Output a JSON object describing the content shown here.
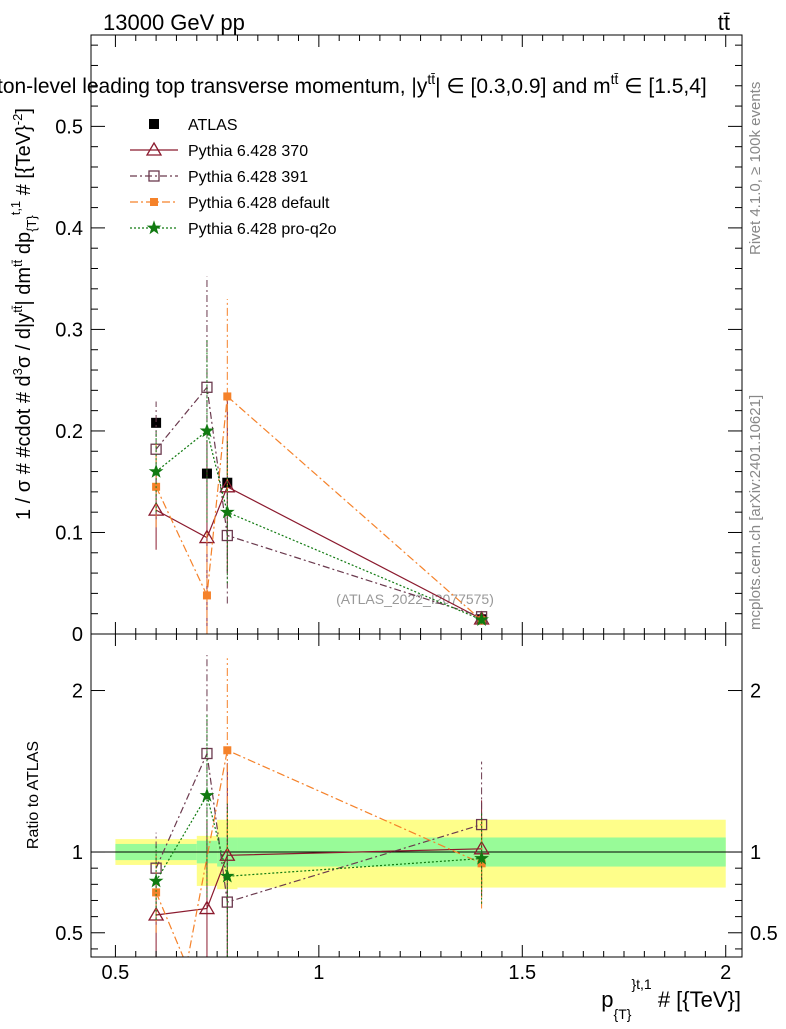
{
  "header": {
    "left": "13000 GeV pp",
    "right": "tt̄",
    "title_clipped": "rton-level leading top transverse momentum, |y",
    "title_clipped_sup": "tt̄",
    "title_end": "| ∈ [0.3,0.9] and m",
    "title_end_sup": "tt̄",
    "title_end2": " ∈ [1.5,4]"
  },
  "side_labels": {
    "rivet": "Rivet 4.1.0, ≥ 100k events",
    "mcplots": "mcplots.cern.ch [arXiv:2401.10621]"
  },
  "watermark": "(ATLAS_2022_I2077575)",
  "chart_data": [
    {
      "type": "scatter",
      "panel": "main",
      "ylabel": "1 / σ # #cdot # d³σ / d|y^{tt̄}| dm^{tt̄} dp_{T}^{t,1} # [{TeV}^{-2}]",
      "ylabel_parts": {
        "a": "1 / σ # #cdot # d",
        "a_sup": "3",
        "b": "σ / d|y",
        "b_sup": "tt̄",
        "c": "| dm",
        "c_sup": "tt̄",
        "d": " dp",
        "d_sub": "{T}",
        "d_sup": "t,1",
        "e": " # [{TeV}",
        "e_sup": "-2",
        "f": "]"
      },
      "xlim": [
        0.44,
        2.04
      ],
      "ylim": [
        0,
        0.59
      ],
      "yticks": [
        {
          "v": 0.1,
          "label": "0.1"
        },
        {
          "v": 0.2,
          "label": "0.2"
        },
        {
          "v": 0.3,
          "label": "0.3"
        },
        {
          "v": 0.4,
          "label": "0.4"
        },
        {
          "v": 0.5,
          "label": "0.5"
        },
        {
          "v": 0,
          "label": "0"
        }
      ],
      "series": [
        {
          "name": "ATLAS",
          "marker": "filled-square",
          "color": "#000000",
          "points": [
            {
              "x": 0.6,
              "y": 0.208,
              "lo": 0.208,
              "hi": 0.208
            },
            {
              "x": 0.725,
              "y": 0.158,
              "lo": 0.158,
              "hi": 0.158
            },
            {
              "x": 0.775,
              "y": 0.149,
              "lo": 0.149,
              "hi": 0.149
            },
            {
              "x": 1.4,
              "y": 0.0145,
              "lo": 0.0145,
              "hi": 0.0145
            }
          ]
        },
        {
          "name": "Pythia 6.428 370",
          "marker": "open-triangle",
          "color": "#8b1a2e",
          "dash": "",
          "points": [
            {
              "x": 0.6,
              "y": 0.122,
              "lo": 0.083,
              "hi": 0.161
            },
            {
              "x": 0.725,
              "y": 0.095,
              "lo": 0.0,
              "hi": 0.19
            },
            {
              "x": 0.775,
              "y": 0.145,
              "lo": 0.06,
              "hi": 0.23
            },
            {
              "x": 1.4,
              "y": 0.0148,
              "lo": 0.011,
              "hi": 0.019
            }
          ]
        },
        {
          "name": "Pythia 6.428 391",
          "marker": "open-square",
          "color": "#6b3a4e",
          "dash": "7,3,2,3",
          "points": [
            {
              "x": 0.6,
              "y": 0.182,
              "lo": 0.135,
              "hi": 0.229
            },
            {
              "x": 0.725,
              "y": 0.243,
              "lo": 0.135,
              "hi": 0.352
            },
            {
              "x": 0.775,
              "y": 0.097,
              "lo": 0.03,
              "hi": 0.165
            },
            {
              "x": 1.4,
              "y": 0.017,
              "lo": 0.012,
              "hi": 0.022
            }
          ]
        },
        {
          "name": "Pythia 6.428 default",
          "marker": "filled-small-square",
          "color": "#f5822a",
          "dash": "8,3,2,3",
          "points": [
            {
              "x": 0.6,
              "y": 0.145,
              "lo": 0.105,
              "hi": 0.187
            },
            {
              "x": 0.725,
              "y": 0.038,
              "lo": 0.0,
              "hi": 0.1
            },
            {
              "x": 0.775,
              "y": 0.234,
              "lo": 0.14,
              "hi": 0.33
            },
            {
              "x": 1.4,
              "y": 0.0135,
              "lo": 0.009,
              "hi": 0.018
            }
          ]
        },
        {
          "name": "Pythia 6.428 pro-q2o",
          "marker": "star",
          "color": "#117a11",
          "dash": "2,2",
          "points": [
            {
              "x": 0.6,
              "y": 0.16,
              "lo": 0.12,
              "hi": 0.2
            },
            {
              "x": 0.725,
              "y": 0.2,
              "lo": 0.11,
              "hi": 0.29
            },
            {
              "x": 0.775,
              "y": 0.12,
              "lo": 0.05,
              "hi": 0.19
            },
            {
              "x": 1.4,
              "y": 0.014,
              "lo": 0.01,
              "hi": 0.018
            }
          ]
        }
      ]
    },
    {
      "type": "scatter",
      "panel": "ratio",
      "ylabel": "Ratio to ATLAS",
      "xlabel": "p_{T}^{t,1} # [{TeV}]",
      "xlabel_parts": {
        "a": "p",
        "a_sub": "{T}",
        "a_sup": "}t,1",
        "b": " # [{TeV}]"
      },
      "xlim": [
        0.44,
        2.04
      ],
      "ylim": [
        0.35,
        2.35
      ],
      "xticks": [
        {
          "v": 0.5,
          "label": "0.5"
        },
        {
          "v": 1,
          "label": "1"
        },
        {
          "v": 1.5,
          "label": "1.5"
        },
        {
          "v": 2,
          "label": "2"
        }
      ],
      "yticks": [
        {
          "v": 0.5,
          "label": "0.5"
        },
        {
          "v": 1,
          "label": "1"
        },
        {
          "v": 2,
          "label": "2"
        }
      ],
      "bands": [
        {
          "x0": 0.5,
          "x1": 0.7,
          "y_lo_inner": 0.95,
          "y_hi_inner": 1.05,
          "y_lo_outer": 0.92,
          "y_hi_outer": 1.08
        },
        {
          "x0": 0.7,
          "x1": 0.75,
          "y_lo_inner": 0.93,
          "y_hi_inner": 1.07,
          "y_lo_outer": 0.79,
          "y_hi_outer": 1.1
        },
        {
          "x0": 0.75,
          "x1": 0.8,
          "y_lo_inner": 0.91,
          "y_hi_inner": 1.09,
          "y_lo_outer": 0.77,
          "y_hi_outer": 1.2
        },
        {
          "x0": 0.8,
          "x1": 2.0,
          "y_lo_inner": 0.91,
          "y_hi_inner": 1.09,
          "y_lo_outer": 0.78,
          "y_hi_outer": 1.2
        }
      ],
      "series": [
        {
          "name": "Pythia 6.428 370",
          "marker": "open-triangle",
          "color": "#8b1a2e",
          "dash": "",
          "points": [
            {
              "x": 0.6,
              "y": 0.61,
              "lo": 0.35,
              "hi": 0.8
            },
            {
              "x": 0.725,
              "y": 0.65,
              "lo": 0.35,
              "hi": 1.2
            },
            {
              "x": 0.775,
              "y": 0.98,
              "lo": 0.35,
              "hi": 1.55
            },
            {
              "x": 1.4,
              "y": 1.02,
              "lo": 0.72,
              "hi": 1.32
            }
          ]
        },
        {
          "name": "Pythia 6.428 391",
          "marker": "open-square",
          "color": "#6b3a4e",
          "dash": "7,3,2,3",
          "points": [
            {
              "x": 0.6,
              "y": 0.9,
              "lo": 0.65,
              "hi": 1.12
            },
            {
              "x": 0.725,
              "y": 1.61,
              "lo": 0.85,
              "hi": 2.22
            },
            {
              "x": 0.775,
              "y": 0.69,
              "lo": 0.35,
              "hi": 1.1
            },
            {
              "x": 1.4,
              "y": 1.17,
              "lo": 0.8,
              "hi": 1.56
            }
          ]
        },
        {
          "name": "Pythia 6.428 default",
          "marker": "filled-small-square",
          "color": "#f5822a",
          "dash": "8,3,2,3",
          "points": [
            {
              "x": 0.6,
              "y": 0.75,
              "lo": 0.5,
              "hi": 0.98
            },
            {
              "x": 0.675,
              "y": 0.3,
              "lo": 0.3,
              "hi": 0.3
            },
            {
              "x": 0.775,
              "y": 1.63,
              "lo": 1.0,
              "hi": 2.2
            },
            {
              "x": 1.4,
              "y": 0.93,
              "lo": 0.65,
              "hi": 1.2
            }
          ]
        },
        {
          "name": "Pythia 6.428 pro-q2o",
          "marker": "star",
          "color": "#117a11",
          "dash": "2,2",
          "points": [
            {
              "x": 0.6,
              "y": 0.82,
              "lo": 0.58,
              "hi": 1.05
            },
            {
              "x": 0.725,
              "y": 1.35,
              "lo": 0.72,
              "hi": 1.85
            },
            {
              "x": 0.775,
              "y": 0.85,
              "lo": 0.35,
              "hi": 1.3
            },
            {
              "x": 1.4,
              "y": 0.96,
              "lo": 0.68,
              "hi": 1.25
            }
          ]
        }
      ]
    }
  ],
  "legend": {
    "position": "top-left",
    "entries": [
      {
        "label": "ATLAS",
        "marker": "filled-square",
        "color": "#000000",
        "dash": ""
      },
      {
        "label": "Pythia 6.428 370",
        "marker": "open-triangle",
        "color": "#8b1a2e",
        "dash": ""
      },
      {
        "label": "Pythia 6.428 391",
        "marker": "open-square",
        "color": "#6b3a4e",
        "dash": "7,3,2,3"
      },
      {
        "label": "Pythia 6.428 default",
        "marker": "filled-small-square",
        "color": "#f5822a",
        "dash": "8,3,2,3"
      },
      {
        "label": "Pythia 6.428 pro-q2o",
        "marker": "star",
        "color": "#117a11",
        "dash": "2,2"
      }
    ]
  },
  "colors": {
    "band_inner": "#98fb98",
    "band_outer": "#fefe8a",
    "axis": "#000000",
    "watermark": "#999999"
  }
}
